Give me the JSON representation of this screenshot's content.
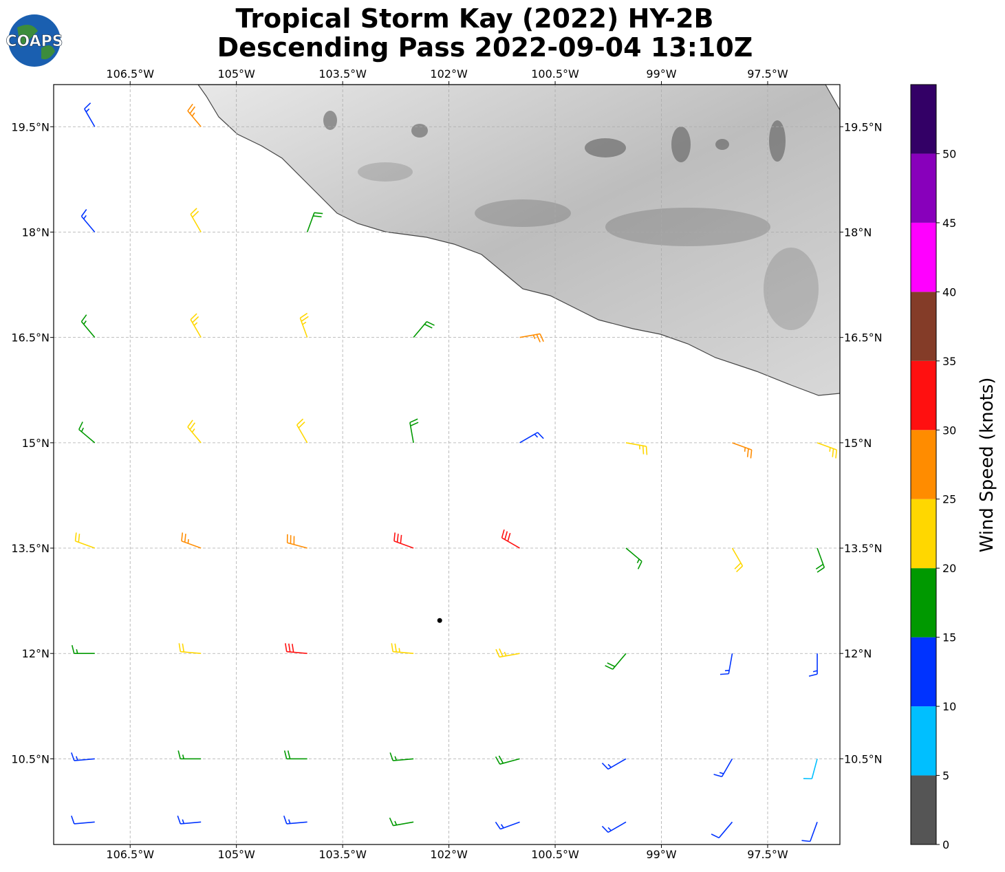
{
  "chart_data": {
    "type": "barbs",
    "title": "Tropical Storm Kay (2022) HY-2B",
    "subtitle": "Descending Pass 2022-09-04 13:10Z",
    "logo": "COAPS",
    "xlim": [
      -107.58,
      -96.48
    ],
    "ylim": [
      9.28,
      20.1
    ],
    "xticks": [
      {
        "value": -106.5,
        "label": "106.5°W"
      },
      {
        "value": -105,
        "label": "105°W"
      },
      {
        "value": -103.5,
        "label": "103.5°W"
      },
      {
        "value": -102,
        "label": "102°W"
      },
      {
        "value": -100.5,
        "label": "100.5°W"
      },
      {
        "value": -99,
        "label": "99°W"
      },
      {
        "value": -97.5,
        "label": "97.5°W"
      }
    ],
    "yticks": [
      {
        "value": 10.5,
        "label": "10.5°N"
      },
      {
        "value": 12,
        "label": "12°N"
      },
      {
        "value": 13.5,
        "label": "13.5°N"
      },
      {
        "value": 15,
        "label": "15°N"
      },
      {
        "value": 16.5,
        "label": "16.5°N"
      },
      {
        "value": 18,
        "label": "18°N"
      },
      {
        "value": 19.5,
        "label": "19.5°N"
      }
    ],
    "grid": true,
    "colorbar": {
      "label": "Wind Speed (knots)",
      "lim": [
        0,
        55
      ],
      "ticks": [
        0,
        5,
        10,
        15,
        20,
        25,
        30,
        35,
        40,
        45,
        50
      ],
      "bounds": [
        0,
        5,
        10,
        15,
        20,
        25,
        30,
        35,
        40,
        45,
        50,
        55
      ],
      "colors": [
        "#555555",
        "#00bfff",
        "#0033ff",
        "#009900",
        "#ffd700",
        "#ff8c00",
        "#ff1010",
        "#843c28",
        "#ff00ff",
        "#8800bb",
        "#330066"
      ]
    },
    "storm_center": {
      "lon": -102.13,
      "lat": 12.47
    },
    "barbs": {
      "lon": [
        -107,
        -105.5,
        -107,
        -105.5,
        -104,
        -107,
        -105.5,
        -104,
        -102.5,
        -101,
        -107,
        -105.5,
        -104,
        -102.5,
        -101,
        -99.5,
        -98,
        -96.8,
        -107,
        -105.5,
        -104,
        -102.5,
        -101,
        -99.5,
        -98,
        -96.8,
        -107,
        -105.5,
        -104,
        -102.5,
        -101,
        -99.5,
        -98,
        -96.8,
        -107,
        -105.5,
        -104,
        -102.5,
        -101,
        -99.5,
        -98,
        -96.8,
        -107,
        -105.5,
        -104,
        -102.5,
        -101,
        -99.5,
        -98,
        -96.8
      ],
      "lat": [
        19.5,
        19.5,
        18,
        18,
        18,
        16.5,
        16.5,
        16.5,
        16.5,
        16.5,
        15,
        15,
        15,
        15,
        15,
        15,
        15,
        15,
        13.5,
        13.5,
        13.5,
        13.5,
        13.5,
        13.5,
        13.5,
        13.5,
        12,
        12,
        12,
        12,
        12,
        12,
        12,
        12,
        10.5,
        10.5,
        10.5,
        10.5,
        10.5,
        10.5,
        10.5,
        10.5,
        9.6,
        9.6,
        9.6,
        9.6,
        9.6,
        9.6,
        9.6,
        9.6
      ],
      "speed": [
        13,
        27,
        13,
        22,
        18,
        17,
        23,
        24,
        18,
        27,
        17,
        24,
        22,
        18,
        13,
        24,
        27,
        23,
        21,
        27,
        28,
        31,
        31,
        17,
        22,
        18,
        17,
        22,
        31,
        24,
        23,
        18,
        14,
        13,
        13,
        17,
        18,
        17,
        18,
        14,
        14,
        9,
        12,
        13,
        13,
        16,
        14,
        13,
        12,
        11
      ],
      "direction": [
        330,
        320,
        320,
        330,
        20,
        320,
        330,
        340,
        40,
        80,
        310,
        320,
        330,
        350,
        60,
        100,
        110,
        110,
        290,
        290,
        285,
        290,
        300,
        130,
        150,
        160,
        270,
        275,
        275,
        275,
        260,
        220,
        190,
        180,
        265,
        270,
        270,
        265,
        255,
        240,
        210,
        195,
        265,
        265,
        265,
        260,
        250,
        240,
        220,
        200
      ]
    }
  }
}
